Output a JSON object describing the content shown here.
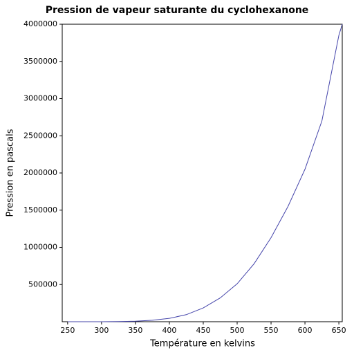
{
  "chart_data": {
    "type": "line",
    "title": "Pression de vapeur saturante du cyclohexanone",
    "x_label": "Température en kelvins",
    "y_label": "Pression en pascals",
    "x": [
      250,
      275,
      300,
      325,
      350,
      375,
      400,
      425,
      450,
      475,
      500,
      525,
      550,
      575,
      600,
      625,
      650,
      655
    ],
    "series": [
      {
        "name": "cyclohexanone",
        "color": "#4444aa",
        "values": [
          40,
          150,
          500,
          2200,
          7500,
          20000,
          45000,
          95000,
          185000,
          320000,
          510000,
          780000,
          1130000,
          1550000,
          2050000,
          2700000,
          3850000,
          4000000
        ]
      }
    ],
    "xlim": [
      242,
      655
    ],
    "ylim": [
      0,
      4000000
    ],
    "xticks": [
      250,
      300,
      350,
      400,
      450,
      500,
      550,
      600,
      650
    ],
    "yticks": [
      500000,
      1000000,
      1500000,
      2000000,
      2500000,
      3000000,
      3500000,
      4000000
    ],
    "grid": false
  }
}
